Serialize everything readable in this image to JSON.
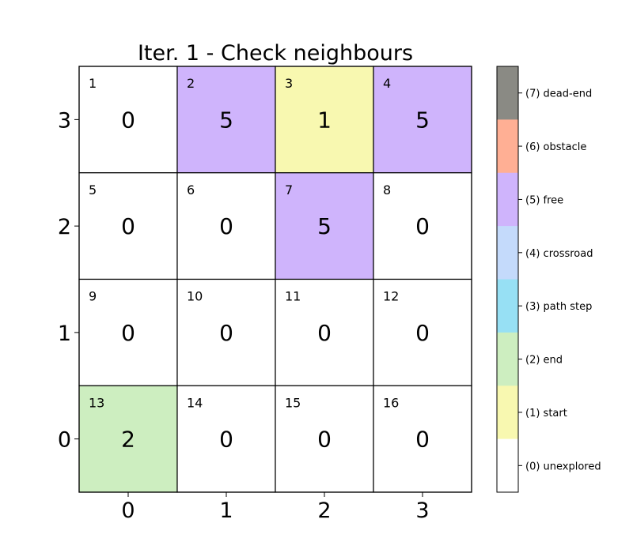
{
  "chart_data": {
    "type": "heatmap",
    "title": "Iter. 1 - Check neighbours",
    "x_ticks": [
      "0",
      "1",
      "2",
      "3"
    ],
    "y_ticks": [
      "3",
      "2",
      "1",
      "0"
    ],
    "grid": {
      "rows": [
        [
          {
            "id": "1",
            "value": 0
          },
          {
            "id": "2",
            "value": 5
          },
          {
            "id": "3",
            "value": 1
          },
          {
            "id": "4",
            "value": 5
          }
        ],
        [
          {
            "id": "5",
            "value": 0
          },
          {
            "id": "6",
            "value": 0
          },
          {
            "id": "7",
            "value": 5
          },
          {
            "id": "8",
            "value": 0
          }
        ],
        [
          {
            "id": "9",
            "value": 0
          },
          {
            "id": "10",
            "value": 0
          },
          {
            "id": "11",
            "value": 0
          },
          {
            "id": "12",
            "value": 0
          }
        ],
        [
          {
            "id": "13",
            "value": 2
          },
          {
            "id": "14",
            "value": 0
          },
          {
            "id": "15",
            "value": 0
          },
          {
            "id": "16",
            "value": 0
          }
        ]
      ]
    },
    "legend": {
      "placement": "right",
      "entries": [
        {
          "value": 7,
          "label": "(7) dead-end",
          "color": "#8a8a84"
        },
        {
          "value": 6,
          "label": "(6) obstacle",
          "color": "#ffaf94"
        },
        {
          "value": 5,
          "label": "(5) free",
          "color": "#cfb4fc"
        },
        {
          "value": 4,
          "label": "(4) crossroad",
          "color": "#c4dafb"
        },
        {
          "value": 3,
          "label": "(3) path step",
          "color": "#97e0f4"
        },
        {
          "value": 2,
          "label": "(2) end",
          "color": "#cdeec0"
        },
        {
          "value": 1,
          "label": "(1) start",
          "color": "#f8f8b0"
        },
        {
          "value": 0,
          "label": "(0) unexplored",
          "color": "#ffffff"
        }
      ]
    }
  }
}
